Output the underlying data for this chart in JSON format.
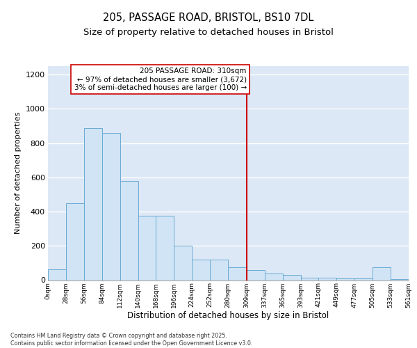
{
  "title1": "205, PASSAGE ROAD, BRISTOL, BS10 7DL",
  "title2": "Size of property relative to detached houses in Bristol",
  "xlabel": "Distribution of detached houses by size in Bristol",
  "ylabel": "Number of detached properties",
  "bin_labels": [
    "0sqm",
    "28sqm",
    "56sqm",
    "84sqm",
    "112sqm",
    "140sqm",
    "168sqm",
    "196sqm",
    "224sqm",
    "252sqm",
    "280sqm",
    "309sqm",
    "337sqm",
    "365sqm",
    "393sqm",
    "421sqm",
    "449sqm",
    "477sqm",
    "505sqm",
    "533sqm",
    "561sqm"
  ],
  "bin_edges": [
    0,
    28,
    56,
    84,
    112,
    140,
    168,
    196,
    224,
    252,
    280,
    309,
    337,
    365,
    393,
    421,
    449,
    477,
    505,
    533,
    561
  ],
  "values": [
    65,
    450,
    890,
    860,
    580,
    375,
    375,
    200,
    120,
    120,
    75,
    60,
    40,
    30,
    15,
    15,
    10,
    10,
    75,
    5,
    0
  ],
  "bar_color": "#d0e4f5",
  "bar_edge_color": "#6aaad4",
  "vline_x": 309,
  "vline_color": "#cc0000",
  "annotation_text": "205 PASSAGE ROAD: 310sqm\n← 97% of detached houses are smaller (3,672)\n3% of semi-detached houses are larger (100) →",
  "annotation_box_color": "#ffffff",
  "annotation_box_edge": "#cc0000",
  "ylim": [
    0,
    1250
  ],
  "yticks": [
    0,
    200,
    400,
    600,
    800,
    1000,
    1200
  ],
  "bg_color": "#dce8f5",
  "footer": "Contains HM Land Registry data © Crown copyright and database right 2025.\nContains public sector information licensed under the Open Government Licence v3.0."
}
